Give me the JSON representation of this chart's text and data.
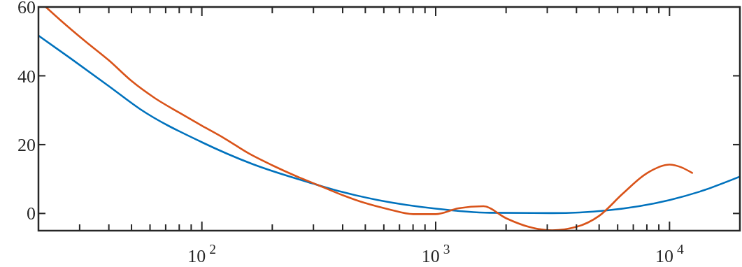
{
  "chart_data": {
    "type": "line",
    "log": "x",
    "grid": false,
    "marker": "none",
    "line_style": "solid",
    "xlim": [
      20,
      20000
    ],
    "ylim": [
      -5,
      60
    ],
    "xticks": [
      {
        "value": 30,
        "label": null
      },
      {
        "value": 40,
        "label": null
      },
      {
        "value": 50,
        "label": null
      },
      {
        "value": 60,
        "label": null
      },
      {
        "value": 70,
        "label": null
      },
      {
        "value": 80,
        "label": null
      },
      {
        "value": 90,
        "label": null
      },
      {
        "value": 100,
        "label": "10$^{2}$"
      },
      {
        "value": 200,
        "label": null
      },
      {
        "value": 300,
        "label": null
      },
      {
        "value": 400,
        "label": null
      },
      {
        "value": 500,
        "label": null
      },
      {
        "value": 600,
        "label": null
      },
      {
        "value": 700,
        "label": null
      },
      {
        "value": 800,
        "label": null
      },
      {
        "value": 900,
        "label": null
      },
      {
        "value": 1000,
        "label": "10$^{3}$"
      },
      {
        "value": 2000,
        "label": null
      },
      {
        "value": 3000,
        "label": null
      },
      {
        "value": 4000,
        "label": null
      },
      {
        "value": 5000,
        "label": null
      },
      {
        "value": 6000,
        "label": null
      },
      {
        "value": 7000,
        "label": null
      },
      {
        "value": 8000,
        "label": null
      },
      {
        "value": 9000,
        "label": null
      },
      {
        "value": 10000,
        "label": "10$^{4}$"
      }
    ],
    "yticks": [
      0,
      20,
      40,
      60
    ],
    "series": [
      {
        "color": "#0072bd",
        "x": [
          20,
          27.4,
          40,
          54.5,
          100,
          164,
          298,
          400,
          566,
          1000,
          1706,
          3150,
          5400,
          10000,
          13400,
          20000
        ],
        "values": [
          51.7,
          45.1,
          37,
          30.3,
          20.7,
          14.4,
          8.7,
          6.2,
          3.9,
          1.4,
          0.2,
          0.1,
          0.9,
          3.9,
          6.3,
          10.7
        ]
      },
      {
        "color": "#d95319",
        "x": [
          21.5,
          25,
          31.5,
          40,
          50,
          63,
          80,
          100,
          125,
          160,
          200,
          250,
          315,
          400,
          500,
          630,
          800,
          1000,
          1250,
          1600,
          2000,
          2500,
          3150,
          4000,
          5000,
          6300,
          8000,
          10000,
          12500
        ],
        "values": [
          60,
          56,
          50.2,
          44.5,
          38.5,
          33.5,
          29.3,
          25.5,
          21.8,
          17.3,
          14,
          11,
          8.2,
          5.3,
          3,
          1.2,
          -0.2,
          -0.2,
          1.5,
          2.1,
          -1.4,
          -3.9,
          -4.9,
          -3.9,
          -0.7,
          5.7,
          11.7,
          14.2,
          11.8
        ]
      }
    ]
  }
}
